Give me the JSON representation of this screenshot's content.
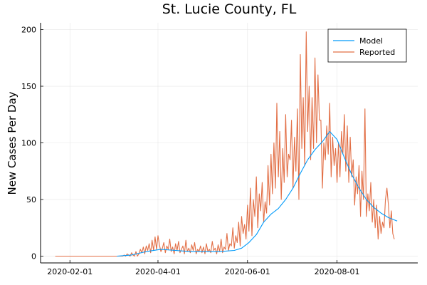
{
  "chart_data": {
    "type": "line",
    "title": "St. Lucie County, FL",
    "xlabel": "",
    "ylabel": "New Cases Per Day",
    "x_start": "2020-01-22",
    "xlim": [
      "2020-01-12",
      "2020-09-25"
    ],
    "ylim": [
      -6,
      206
    ],
    "x_ticks": [
      "2020-02-01",
      "2020-04-01",
      "2020-06-01",
      "2020-08-01"
    ],
    "y_ticks": [
      0,
      50,
      100,
      150,
      200
    ],
    "grid": true,
    "legend_position": "top-right",
    "series": [
      {
        "name": "Model",
        "color": "#009AFA",
        "x": [
          "2020-03-04",
          "2020-03-14",
          "2020-03-24",
          "2020-04-03",
          "2020-04-13",
          "2020-04-23",
          "2020-05-03",
          "2020-05-13",
          "2020-05-23",
          "2020-05-28",
          "2020-06-02",
          "2020-06-07",
          "2020-06-12",
          "2020-06-17",
          "2020-06-22",
          "2020-06-27",
          "2020-07-02",
          "2020-07-07",
          "2020-07-12",
          "2020-07-17",
          "2020-07-22",
          "2020-07-27",
          "2020-08-01",
          "2020-08-06",
          "2020-08-11",
          "2020-08-16",
          "2020-08-21",
          "2020-08-26",
          "2020-08-31",
          "2020-09-05",
          "2020-09-11"
        ],
        "values": [
          0,
          1,
          4,
          6,
          5,
          4,
          4,
          4,
          5,
          7,
          12,
          19,
          30,
          37,
          42,
          50,
          60,
          73,
          85,
          94,
          101,
          110,
          103,
          87,
          72,
          60,
          50,
          43,
          38,
          34,
          31
        ]
      },
      {
        "name": "Reported",
        "color": "#E26F46",
        "x_start": "2020-01-22",
        "values": [
          0,
          0,
          0,
          0,
          0,
          0,
          0,
          0,
          0,
          0,
          0,
          0,
          0,
          0,
          0,
          0,
          0,
          0,
          0,
          0,
          0,
          0,
          0,
          0,
          0,
          0,
          0,
          0,
          0,
          0,
          0,
          0,
          0,
          0,
          0,
          0,
          0,
          0,
          0,
          0,
          0,
          0,
          0,
          0,
          0,
          0,
          0,
          1,
          0,
          2,
          1,
          0,
          3,
          1,
          0,
          4,
          0,
          2,
          6,
          3,
          8,
          2,
          9,
          5,
          11,
          3,
          14,
          5,
          17,
          6,
          18,
          10,
          4,
          7,
          12,
          3,
          9,
          6,
          15,
          4,
          8,
          2,
          11,
          5,
          13,
          3,
          6,
          9,
          2,
          14,
          4,
          7,
          3,
          10,
          5,
          12,
          2,
          6,
          4,
          9,
          3,
          8,
          2,
          11,
          4,
          6,
          3,
          13,
          5,
          7,
          2,
          10,
          4,
          15,
          3,
          8,
          6,
          20,
          5,
          11,
          9,
          25,
          7,
          18,
          12,
          30,
          9,
          35,
          20,
          28,
          15,
          45,
          22,
          60,
          18,
          50,
          35,
          70,
          25,
          55,
          40,
          65,
          30,
          48,
          38,
          80,
          45,
          90,
          55,
          100,
          60,
          135,
          70,
          110,
          50,
          95,
          65,
          125,
          70,
          90,
          85,
          120,
          60,
          105,
          75,
          130,
          50,
          178,
          95,
          140,
          80,
          198,
          110,
          150,
          85,
          140,
          95,
          175,
          100,
          160,
          120,
          120,
          60,
          100,
          85,
          115,
          90,
          135,
          70,
          105,
          80,
          95,
          65,
          100,
          70,
          110,
          90,
          125,
          75,
          115,
          65,
          105,
          70,
          85,
          45,
          70,
          55,
          80,
          35,
          75,
          50,
          130,
          35,
          55,
          40,
          65,
          30,
          50,
          25,
          45,
          15,
          35,
          20,
          30,
          25,
          50,
          60,
          45,
          25,
          40,
          20,
          15
        ]
      }
    ]
  }
}
